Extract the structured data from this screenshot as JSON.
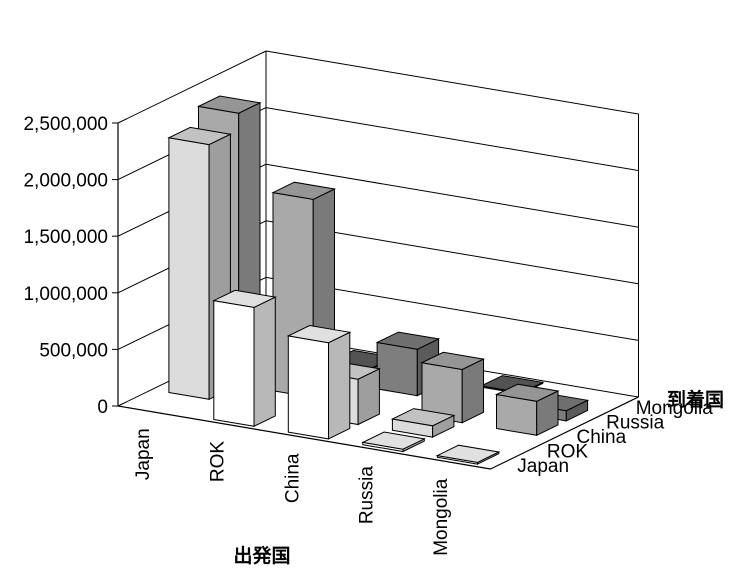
{
  "chart_data": {
    "type": "bar",
    "subtype": "3d-bar",
    "xlabel": "出発国",
    "zlabel": "到着国",
    "ylim": [
      0,
      2500000
    ],
    "yticks": [
      "0",
      "500,000",
      "1,000,000",
      "1,500,000",
      "2,000,000",
      "2,500,000"
    ],
    "grid": true,
    "categories": [
      "Japan",
      "ROK",
      "China",
      "Russia",
      "Mongolia"
    ],
    "depth_categories": [
      "Japan",
      "ROK",
      "China",
      "Russia",
      "Mongolia"
    ],
    "series": [
      {
        "name": "Japan",
        "values": [
          0,
          1050000,
          850000,
          20000,
          15000
        ]
      },
      {
        "name": "ROK",
        "values": [
          2250000,
          0,
          400000,
          100000,
          0
        ]
      },
      {
        "name": "China",
        "values": [
          2400000,
          1750000,
          0,
          470000,
          300000
        ]
      },
      {
        "name": "Russia",
        "values": [
          0,
          0,
          410000,
          0,
          90000
        ]
      },
      {
        "name": "Mongolia",
        "values": [
          40000,
          10000,
          30000,
          10000,
          0
        ]
      }
    ]
  },
  "colors": {
    "Japan": "#ffffff",
    "ROK": "#dcdcdc",
    "China": "#a9a9a9",
    "Russia": "#7e7e7e",
    "Mongolia": "#5e5e5e"
  }
}
